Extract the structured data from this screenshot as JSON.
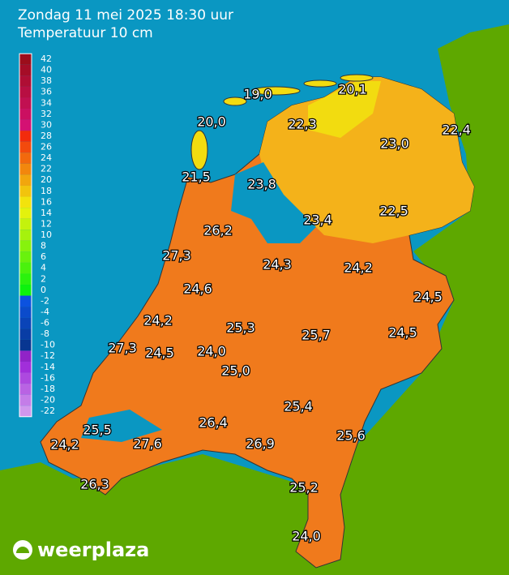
{
  "header": {
    "title": "Zondag 11 mei 2025 18:30 uur",
    "subtitle": "Temperatuur 10 cm"
  },
  "legend": {
    "ticks": [
      42,
      40,
      38,
      36,
      34,
      32,
      30,
      28,
      26,
      24,
      22,
      20,
      18,
      16,
      14,
      12,
      10,
      8,
      6,
      4,
      2,
      0,
      -2,
      -4,
      -6,
      -8,
      -10,
      -12,
      -14,
      -16,
      -18,
      -20,
      -22
    ]
  },
  "stations": [
    "19,0",
    "20,1",
    "20,0",
    "22,3",
    "22,4",
    "23,0",
    "21,5",
    "23,8",
    "23,4",
    "22,5",
    "26,2",
    "27,3",
    "24,3",
    "24,2",
    "24,6",
    "24,5",
    "24,2",
    "25,3",
    "25,7",
    "24,5",
    "27,3",
    "24,5",
    "24,0",
    "25,0",
    "25,4",
    "26,4",
    "25,5",
    "25,6",
    "24,2",
    "27,6",
    "26,9",
    "26,3",
    "25,2",
    "24,0"
  ],
  "brand": "weerplaza"
}
